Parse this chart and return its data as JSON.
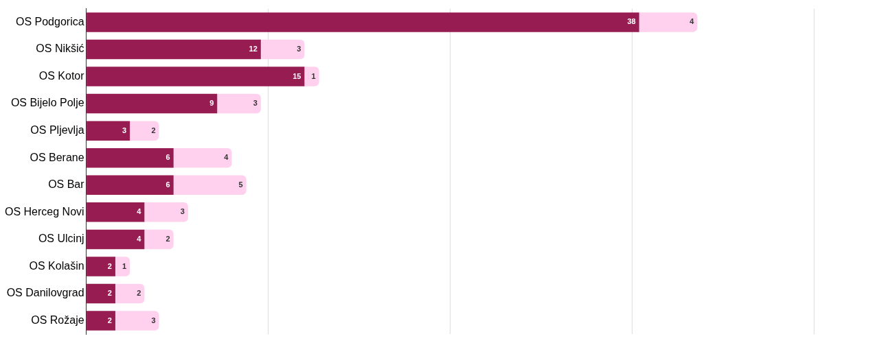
{
  "chart_data": {
    "type": "bar",
    "orientation": "horizontal",
    "stacked": true,
    "data_labels": true,
    "grid": "x",
    "legend": false,
    "tick_labels": "y",
    "categories": [
      "OS Podgorica",
      "OS Nikšić",
      "OS Kotor",
      "OS Bijelo Polje",
      "OS Pljevlja",
      "OS Berane",
      "OS Bar",
      "OS Herceg Novi",
      "OS Ulcinj",
      "OS Kolašin",
      "OS Danilovgrad",
      "OS Rožaje"
    ],
    "xticks": [
      0,
      {
        "value": 12.5,
        "label": null
      },
      {
        "value": 25,
        "label": null
      },
      {
        "value": 37.5,
        "label": null
      },
      {
        "value": 50,
        "label": null
      }
    ],
    "series": [
      {
        "color": "#961c52",
        "values": [
          38,
          12,
          15,
          9,
          3,
          6,
          6,
          4,
          4,
          2,
          2,
          2
        ]
      },
      {
        "color": "#ffd1ee",
        "values": [
          4,
          3,
          1,
          3,
          2,
          4,
          5,
          3,
          2,
          1,
          2,
          3
        ]
      }
    ]
  }
}
